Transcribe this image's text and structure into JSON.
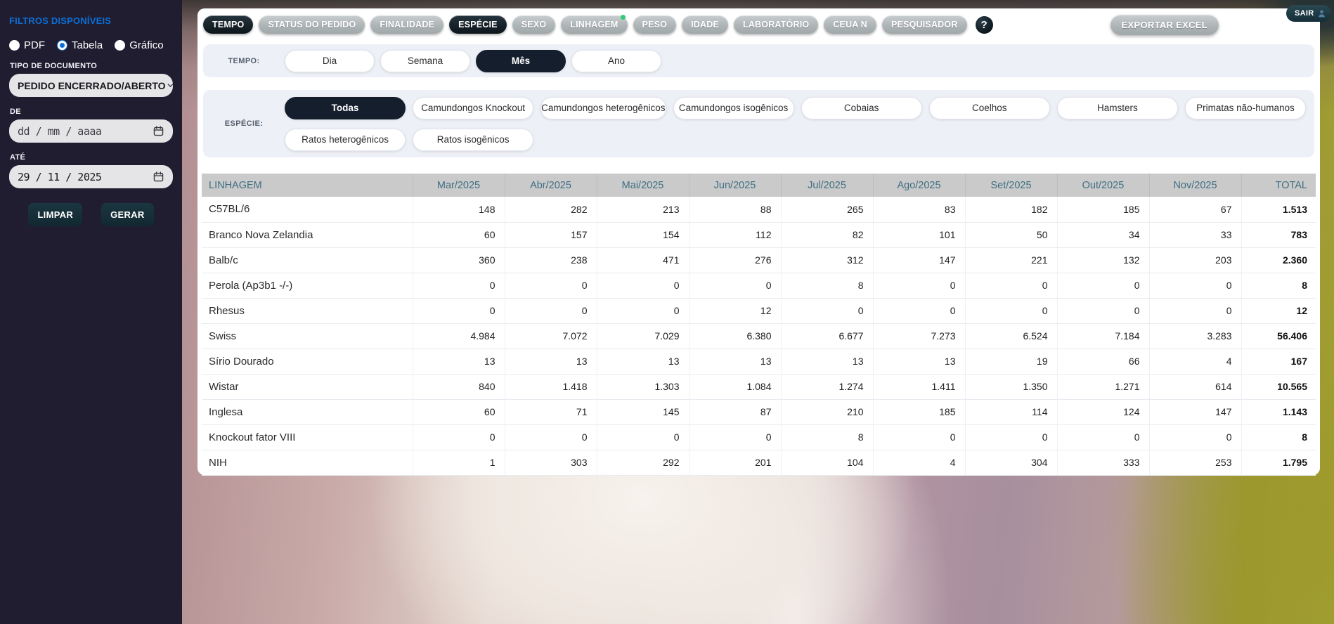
{
  "colors": {
    "accent_blue": "#0b6fd6",
    "sidebar_title_blue": "#4a9bd5",
    "tab_active": "#0c151b",
    "pill_active": "#151e2d",
    "header_text": "#3f6e82",
    "green_dot": "#2ecc71"
  },
  "sidebar": {
    "title": "FILTROS DISPONÍVEIS",
    "output_options": [
      {
        "label": "PDF",
        "checked": false
      },
      {
        "label": "Tabela",
        "checked": true
      },
      {
        "label": "Gráfico",
        "checked": false
      }
    ],
    "doc_type_label": "TIPO DE DOCUMENTO",
    "doc_type_value": "PEDIDO ENCERRADO/ABERTO",
    "date_from_label": "DE",
    "date_from_value": "dd / mm / aaaa",
    "date_from_is_placeholder": true,
    "date_to_label": "ATÉ",
    "date_to_value": "29 / 11 / 2025",
    "date_to_is_placeholder": false,
    "clear_button": "LIMPAR",
    "generate_button": "GERAR"
  },
  "topbar": {
    "tabs": [
      {
        "label": "TEMPO",
        "active": true,
        "dot": false
      },
      {
        "label": "STATUS DO PEDIDO",
        "active": false,
        "dot": false
      },
      {
        "label": "FINALIDADE",
        "active": false,
        "dot": false
      },
      {
        "label": "ESPÉCIE",
        "active": true,
        "dot": false
      },
      {
        "label": "SEXO",
        "active": false,
        "dot": false
      },
      {
        "label": "LINHAGEM",
        "active": false,
        "dot": true
      },
      {
        "label": "PESO",
        "active": false,
        "dot": false
      },
      {
        "label": "IDADE",
        "active": false,
        "dot": false
      },
      {
        "label": "LABORATÓRIO",
        "active": false,
        "dot": false
      },
      {
        "label": "CEUA N",
        "active": false,
        "dot": false
      },
      {
        "label": "PESQUISADOR",
        "active": false,
        "dot": false
      }
    ],
    "help_button": "?",
    "export_button": "EXPORTAR EXCEL",
    "exit_button": "SAIR"
  },
  "filters": {
    "tempo": {
      "label": "TEMPO:",
      "options": [
        {
          "label": "Dia",
          "active": false
        },
        {
          "label": "Semana",
          "active": false
        },
        {
          "label": "Mês",
          "active": true
        },
        {
          "label": "Ano",
          "active": false
        }
      ]
    },
    "especie": {
      "label": "ESPÉCIE:",
      "options": [
        {
          "label": "Todas",
          "active": true
        },
        {
          "label": "Camundongos Knockout",
          "active": false
        },
        {
          "label": "Camundongos heterogênicos",
          "active": false
        },
        {
          "label": "Camundongos isogênicos",
          "active": false
        },
        {
          "label": "Cobaias",
          "active": false
        },
        {
          "label": "Coelhos",
          "active": false
        },
        {
          "label": "Hamsters",
          "active": false
        },
        {
          "label": "Primatas não-humanos",
          "active": false
        },
        {
          "label": "Ratos heterogênicos",
          "active": false
        },
        {
          "label": "Ratos isogênicos",
          "active": false
        }
      ]
    }
  },
  "table": {
    "columns": [
      "LINHAGEM",
      "Mar/2025",
      "Abr/2025",
      "Mai/2025",
      "Jun/2025",
      "Jul/2025",
      "Ago/2025",
      "Set/2025",
      "Out/2025",
      "Nov/2025",
      "TOTAL"
    ],
    "rows": [
      {
        "name": "C57BL/6",
        "values": [
          "148",
          "282",
          "213",
          "88",
          "265",
          "83",
          "182",
          "185",
          "67"
        ],
        "total": "1.513"
      },
      {
        "name": "Branco Nova Zelandia",
        "values": [
          "60",
          "157",
          "154",
          "112",
          "82",
          "101",
          "50",
          "34",
          "33"
        ],
        "total": "783"
      },
      {
        "name": "Balb/c",
        "values": [
          "360",
          "238",
          "471",
          "276",
          "312",
          "147",
          "221",
          "132",
          "203"
        ],
        "total": "2.360"
      },
      {
        "name": "Perola (Ap3b1 -/-)",
        "values": [
          "0",
          "0",
          "0",
          "0",
          "8",
          "0",
          "0",
          "0",
          "0"
        ],
        "total": "8"
      },
      {
        "name": "Rhesus",
        "values": [
          "0",
          "0",
          "0",
          "12",
          "0",
          "0",
          "0",
          "0",
          "0"
        ],
        "total": "12"
      },
      {
        "name": "Swiss",
        "values": [
          "4.984",
          "7.072",
          "7.029",
          "6.380",
          "6.677",
          "7.273",
          "6.524",
          "7.184",
          "3.283"
        ],
        "total": "56.406"
      },
      {
        "name": "Sírio Dourado",
        "values": [
          "13",
          "13",
          "13",
          "13",
          "13",
          "13",
          "19",
          "66",
          "4"
        ],
        "total": "167"
      },
      {
        "name": "Wistar",
        "values": [
          "840",
          "1.418",
          "1.303",
          "1.084",
          "1.274",
          "1.411",
          "1.350",
          "1.271",
          "614"
        ],
        "total": "10.565"
      },
      {
        "name": "Inglesa",
        "values": [
          "60",
          "71",
          "145",
          "87",
          "210",
          "185",
          "114",
          "124",
          "147"
        ],
        "total": "1.143"
      },
      {
        "name": "Knockout fator VIII",
        "values": [
          "0",
          "0",
          "0",
          "0",
          "8",
          "0",
          "0",
          "0",
          "0"
        ],
        "total": "8"
      },
      {
        "name": "NIH",
        "values": [
          "1",
          "303",
          "292",
          "201",
          "104",
          "4",
          "304",
          "333",
          "253"
        ],
        "total": "1.795"
      }
    ]
  }
}
